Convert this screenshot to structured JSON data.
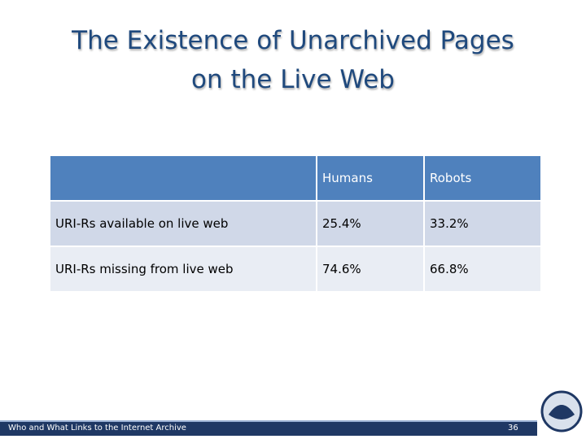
{
  "title": {
    "lines": [
      "The Existence of Unarchived Pages",
      "on the Live Web"
    ]
  },
  "table": {
    "columns": [
      "Humans",
      "Robots"
    ],
    "rows": [
      {
        "label": "URI-Rs available on live web",
        "cells": [
          "25.4%",
          "33.2%"
        ]
      },
      {
        "label": "URI-Rs missing from live web",
        "cells": [
          "74.6%",
          "66.8%"
        ]
      }
    ]
  },
  "footer": {
    "text": "Who and What Links to the Internet Archive",
    "page": "36"
  }
}
